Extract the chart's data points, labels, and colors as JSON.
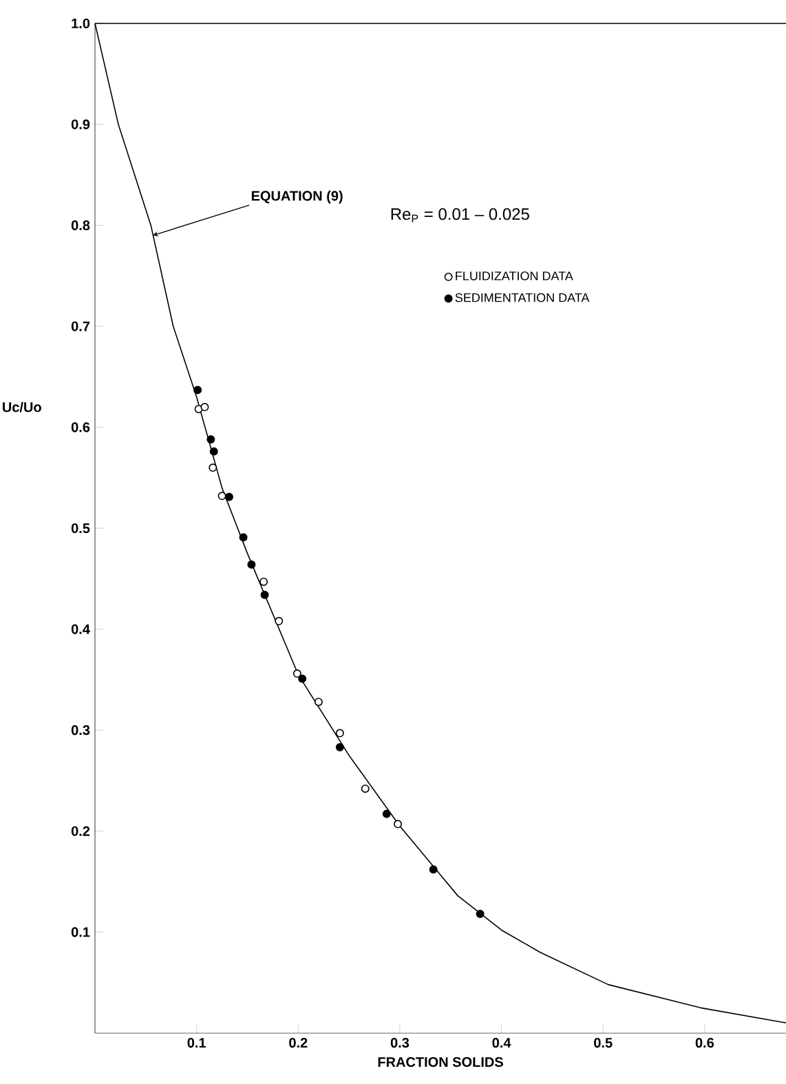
{
  "chart_data": {
    "type": "scatter",
    "xlabel": "FRACTION SOLIDS",
    "ylabel": "Uc/Uo",
    "xlim": [
      0,
      0.68
    ],
    "ylim": [
      0,
      1.0
    ],
    "xticks": [
      0.1,
      0.2,
      0.3,
      0.4,
      0.5,
      0.6
    ],
    "yticks": [
      0.1,
      0.2,
      0.3,
      0.4,
      0.5,
      0.6,
      0.7,
      0.8,
      0.9,
      {
        "value": 1,
        "label": "1.0"
      }
    ],
    "grid": false,
    "legend": "top",
    "annotations": [
      {
        "text": "EQUATION (9)",
        "x": 0.057,
        "y": 0.79
      },
      "Re$_{P}$ = 0.01 – 0.025"
    ],
    "series": [
      {
        "type": "line",
        "color": "#000000",
        "marker": "none",
        "x": [
          0,
          0.023,
          0.055,
          0.077,
          0.1,
          0.125,
          0.15,
          0.2,
          0.25,
          0.3,
          0.357,
          0.4,
          0.438,
          0.505,
          0.596,
          0.68
        ],
        "values": [
          1.0,
          0.9,
          0.8,
          0.7,
          0.63,
          0.54,
          0.475,
          0.355,
          0.275,
          0.205,
          0.136,
          0.102,
          0.08,
          0.048,
          0.025,
          0.01
        ]
      },
      {
        "name": "FLUIDIZATION DATA",
        "color": "#ffffff",
        "marker": "circle",
        "x": [
          0.102,
          0.108,
          0.116,
          0.125,
          0.166,
          0.181,
          0.199,
          0.22,
          0.241,
          0.266,
          0.298
        ],
        "values": [
          0.618,
          0.62,
          0.56,
          0.532,
          0.447,
          0.408,
          0.356,
          0.328,
          0.297,
          0.242,
          0.207
        ]
      },
      {
        "name": "SEDIMENTATION DATA",
        "color": "#000000",
        "marker": "circle",
        "x": [
          0.101,
          0.114,
          0.117,
          0.132,
          0.146,
          0.154,
          0.167,
          0.204,
          0.241,
          0.287,
          0.333,
          0.379
        ],
        "values": [
          0.637,
          0.588,
          0.576,
          0.531,
          0.491,
          0.464,
          0.434,
          0.351,
          0.283,
          0.217,
          0.162,
          0.118
        ]
      }
    ]
  }
}
